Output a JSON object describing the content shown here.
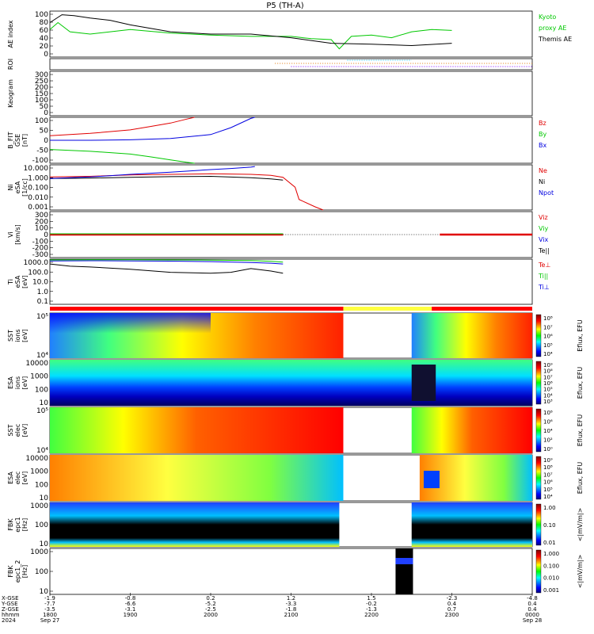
{
  "chart_data": {
    "type": "line",
    "title": "P5 (TH-A)",
    "time_range": [
      "1800",
      "0000"
    ],
    "colors": {
      "green": "#00c800",
      "black": "#000000",
      "red": "#e00000",
      "blue": "#0000e0",
      "yellow": "#ffff40",
      "orange": "#e07000"
    },
    "panels": [
      {
        "id": "ae",
        "ylabel": [
          "AE index"
        ],
        "yticks": [
          "100",
          "80",
          "60",
          "40",
          "20",
          "0"
        ],
        "legend": [
          {
            "text": "Kyoto",
            "color": "green"
          },
          {
            "text": "proxy AE",
            "color": "green"
          },
          {
            "text": "Themis AE",
            "color": "black"
          }
        ],
        "series": [
          {
            "name": "Kyoto proxy AE",
            "color": "green",
            "t": [
              0.0,
              0.02,
              0.05,
              0.1,
              0.15,
              0.2,
              0.3,
              0.4,
              0.5,
              0.6,
              0.65,
              0.7,
              0.72,
              0.75,
              0.8,
              0.85,
              0.9,
              0.95,
              1.0
            ],
            "v": [
              60,
              75,
              55,
              50,
              55,
              60,
              52,
              48,
              45,
              45,
              40,
              38,
              18,
              45,
              48,
              42,
              55,
              60,
              58
            ]
          },
          {
            "name": "Themis AE",
            "color": "black",
            "t": [
              0.0,
              0.03,
              0.06,
              0.1,
              0.15,
              0.2,
              0.3,
              0.4,
              0.5,
              0.6,
              0.7,
              0.8,
              0.9,
              1.0
            ],
            "v": [
              75,
              92,
              90,
              85,
              80,
              70,
              55,
              50,
              50,
              42,
              30,
              28,
              25,
              30
            ]
          }
        ]
      },
      {
        "id": "roi",
        "ylabel": [
          "ROI"
        ],
        "yticks": [],
        "legend": []
      },
      {
        "id": "keogram",
        "ylabel": [
          "Keogram"
        ],
        "yticks": [
          "300",
          "250",
          "200",
          "150",
          "100",
          "50",
          "0"
        ],
        "legend": []
      },
      {
        "id": "bfit",
        "ylabel": [
          "B_FIT",
          "GSE",
          "[nT]"
        ],
        "yticks": [
          "100",
          "50",
          "0",
          "-50",
          "-100"
        ],
        "legend": [
          {
            "text": "Bz",
            "color": "red"
          },
          {
            "text": "By",
            "color": "green"
          },
          {
            "text": "Bx",
            "color": "blue"
          }
        ],
        "series": [
          {
            "name": "Bz",
            "color": "red",
            "t": [
              0.0,
              0.1,
              0.2,
              0.25,
              0.3,
              0.34,
              0.36
            ],
            "v": [
              20,
              30,
              45,
              60,
              75,
              92,
              100
            ]
          },
          {
            "name": "By",
            "color": "green",
            "t": [
              0.0,
              0.1,
              0.2,
              0.25,
              0.3,
              0.34,
              0.36
            ],
            "v": [
              -40,
              -48,
              -60,
              -72,
              -85,
              -96,
              -100
            ]
          },
          {
            "name": "Bx",
            "color": "blue",
            "t": [
              0.0,
              0.1,
              0.2,
              0.3,
              0.4,
              0.45,
              0.5,
              0.51
            ],
            "v": [
              0,
              0,
              2,
              8,
              25,
              55,
              95,
              100
            ]
          }
        ]
      },
      {
        "id": "ni",
        "ylabel": [
          "Ni",
          "eSA",
          "[1/cc]"
        ],
        "yticks": [
          "10.000",
          "1.000",
          "0.100",
          "0.010",
          "0.001"
        ],
        "legend": [
          {
            "text": "Ne",
            "color": "red"
          },
          {
            "text": "Ni",
            "color": "black"
          },
          {
            "text": "Npot",
            "color": "blue"
          }
        ],
        "series": [
          {
            "name": "Ne",
            "color": "red",
            "t": [
              0.0,
              0.1,
              0.2,
              0.3,
              0.4,
              0.5,
              0.55,
              0.58,
              0.61,
              0.62,
              0.66,
              0.68
            ],
            "v": [
              1.4,
              1.6,
              2.2,
              2.5,
              2.8,
              2.5,
              2.0,
              1.3,
              0.15,
              0.01,
              0.002,
              0.001
            ]
          },
          {
            "name": "Ni",
            "color": "black",
            "t": [
              0.0,
              0.1,
              0.2,
              0.3,
              0.4,
              0.5,
              0.55,
              0.58
            ],
            "v": [
              1.0,
              1.1,
              1.3,
              1.5,
              1.6,
              1.2,
              0.9,
              0.7
            ]
          },
          {
            "name": "Npot",
            "color": "blue",
            "t": [
              0.0,
              0.1,
              0.2,
              0.3,
              0.4,
              0.45,
              0.5,
              0.51
            ],
            "v": [
              1.0,
              1.4,
              2.5,
              4.0,
              7.0,
              9.0,
              12.0,
              14.0
            ]
          }
        ]
      },
      {
        "id": "vi",
        "ylabel": [
          "Vi",
          "[km/s]"
        ],
        "yticks": [
          "300",
          "200",
          "100",
          "0",
          "-100",
          "-200",
          "-300"
        ],
        "legend": [
          {
            "text": "Viz",
            "color": "red"
          },
          {
            "text": "Viy",
            "color": "green"
          },
          {
            "text": "Vix",
            "color": "blue"
          },
          {
            "text": "Te||",
            "color": "black"
          }
        ],
        "series": []
      },
      {
        "id": "ti",
        "ylabel": [
          "Ti",
          "eSA",
          "[eV]"
        ],
        "yticks": [
          "1000.0",
          "100.0",
          "10.0",
          "1.0",
          "0.1"
        ],
        "legend": [
          {
            "text": "Te⊥",
            "color": "red"
          },
          {
            "text": "Ti||",
            "color": "green"
          },
          {
            "text": "Ti⊥",
            "color": "blue"
          }
        ],
        "series": [
          {
            "name": "Ti||",
            "color": "green",
            "t": [
              0.0,
              0.1,
              0.2,
              0.3,
              0.4,
              0.5,
              0.55,
              0.58
            ],
            "v": [
              2500,
              2600,
              2600,
              2500,
              2400,
              2200,
              1800,
              1500
            ]
          },
          {
            "name": "Ti⊥",
            "color": "blue",
            "t": [
              0.0,
              0.1,
              0.2,
              0.3,
              0.4,
              0.5,
              0.55,
              0.58
            ],
            "v": [
              2000,
              2100,
              2000,
              1900,
              1700,
              1400,
              1200,
              1000
            ]
          },
          {
            "name": "Te||",
            "color": "black",
            "t": [
              0.0,
              0.05,
              0.1,
              0.2,
              0.3,
              0.4,
              0.45,
              0.5,
              0.55,
              0.58
            ],
            "v": [
              1000,
              600,
              500,
              300,
              150,
              120,
              150,
              350,
              200,
              120
            ]
          }
        ]
      },
      {
        "id": "sst_ion",
        "ylabel": [
          "SST",
          "ions",
          "[eV]"
        ],
        "yticks": [
          "10⁵",
          "10⁴"
        ],
        "legend": [],
        "colorbar": {
          "label": "Eflux, EFU",
          "ticks": [
            "10⁸",
            "10⁷",
            "10⁶",
            "10⁵",
            "10⁴"
          ]
        }
      },
      {
        "id": "esa_ion",
        "ylabel": [
          "ESA",
          "ions",
          "[eV]"
        ],
        "yticks": [
          "10000",
          "1000",
          "100",
          "10"
        ],
        "legend": [],
        "colorbar": {
          "label": "Eflux, EFU",
          "ticks": [
            "10⁹",
            "10⁸",
            "10⁷",
            "10⁶",
            "10⁵",
            "10⁴",
            "10³"
          ]
        }
      },
      {
        "id": "sst_elec",
        "ylabel": [
          "SST",
          "elec",
          "[eV]"
        ],
        "yticks": [
          "10⁵",
          "10⁴"
        ],
        "legend": [],
        "colorbar": {
          "label": "Eflux, EFU",
          "ticks": [
            "10⁸",
            "10⁶",
            "10⁴",
            "10²",
            "10⁰"
          ]
        }
      },
      {
        "id": "esa_elec",
        "ylabel": [
          "ESA",
          "elec",
          "[eV]"
        ],
        "yticks": [
          "10000",
          "1000",
          "100",
          "10"
        ],
        "legend": [],
        "colorbar": {
          "label": "Eflux, EFU",
          "ticks": [
            "10⁹",
            "10⁸",
            "10⁷",
            "10⁶",
            "10⁵",
            "10⁴"
          ]
        }
      },
      {
        "id": "fbk1",
        "ylabel": [
          "FBK",
          "epc1",
          "[Hz]"
        ],
        "yticks": [
          "1000",
          "100",
          "10"
        ],
        "legend": [],
        "colorbar": {
          "label": "<|mV/m|>",
          "ticks": [
            "1.00",
            "0.10",
            "0.01"
          ]
        }
      },
      {
        "id": "fbk2",
        "ylabel": [
          "FBK",
          "epc1_2",
          "[Hz]"
        ],
        "yticks": [
          "1000",
          "100",
          "10"
        ],
        "legend": [],
        "colorbar": {
          "label": "<|mV/m|>",
          "ticks": [
            "1.000",
            "0.100",
            "0.010",
            "0.001"
          ]
        }
      }
    ],
    "x_axis": {
      "row_labels": [
        "X-GSE",
        "Y-GSE",
        "Z-GSE",
        "hhmm",
        "2024"
      ],
      "ticks": [
        {
          "t": 0.0,
          "rows": [
            "-1.9",
            "-7.7",
            "-3.5",
            "1800",
            "Sep 27"
          ]
        },
        {
          "t": 0.2,
          "rows": [
            "-0.8",
            "-6.6",
            "-3.1",
            "1900",
            ""
          ]
        },
        {
          "t": 0.4,
          "rows": [
            "0.2",
            "-5.2",
            "-2.5",
            "2000",
            ""
          ]
        },
        {
          "t": 0.6,
          "rows": [
            "1.2",
            "-3.3",
            "-1.8",
            "2100",
            ""
          ]
        },
        {
          "t": 0.8,
          "rows": [
            "1.5",
            "-0.2",
            "-1.3",
            "2200",
            ""
          ]
        },
        {
          "t": 1.0,
          "rows": [
            "-2.3",
            "0.4",
            "0.7",
            "2300",
            ""
          ]
        },
        {
          "t": 1.2,
          "rows": [
            "-4.8",
            "0.4",
            "0.4",
            "0000",
            "Sep 28"
          ]
        }
      ]
    }
  }
}
